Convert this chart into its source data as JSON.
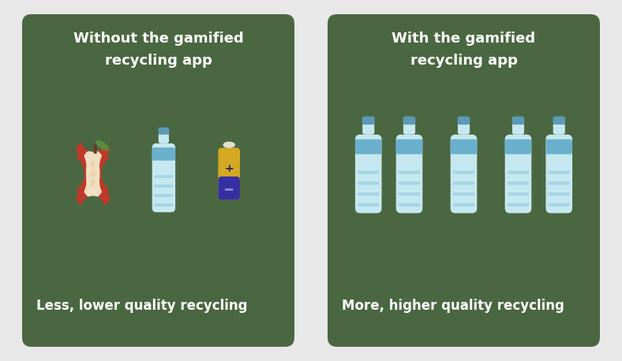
{
  "bg_color": "#e8e8e8",
  "panel_color": "#4a6741",
  "text_color": "#ffffff",
  "title_left": "Without the gamified\nrecycling app",
  "title_right": "With the gamified\nrecycling app",
  "caption_left": "Less, lower quality recycling",
  "caption_right": "More, higher quality recycling",
  "bottle_body_color": "#c5e8f0",
  "bottle_label_color": "#6ab0cc",
  "bottle_stripe_color": "#9dcfe0",
  "bottle_cap_color": "#5b9ab5",
  "apple_red": "#c0392b",
  "apple_cream": "#f0dfc0",
  "apple_tan": "#e8c8a0",
  "apple_green": "#5a8a3c",
  "apple_stem": "#6b3a2a",
  "battery_purple": "#3530a0",
  "battery_gold": "#d4a820",
  "battery_cap_color": "#e0e0d0",
  "battery_minus_color": "#2a2580"
}
